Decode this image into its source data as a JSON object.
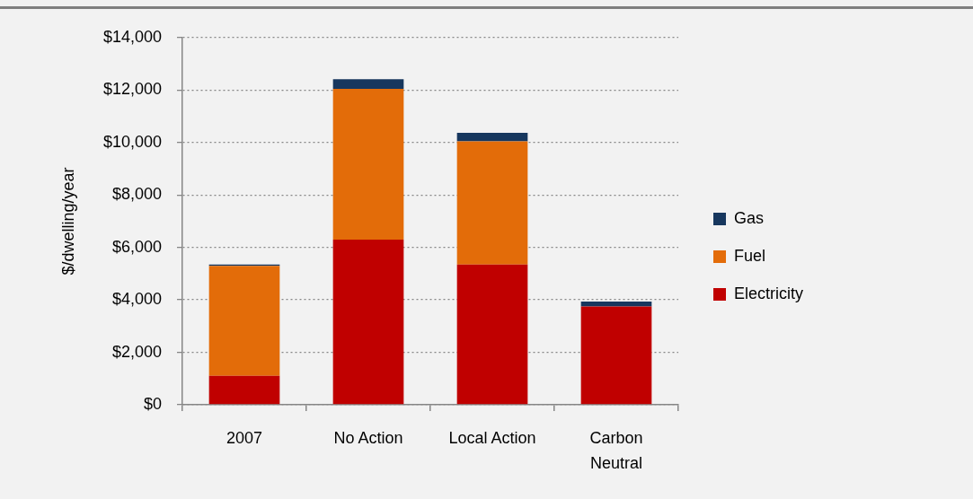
{
  "chart_data": {
    "type": "bar",
    "stacked": true,
    "ylabel": "$/dwelling/year",
    "categories": [
      "2007",
      "No Action",
      "Local Action",
      "Carbon Neutral"
    ],
    "series": [
      {
        "name": "Electricity",
        "color": "#c00000",
        "values": [
          1100,
          6300,
          5350,
          3750
        ]
      },
      {
        "name": "Fuel",
        "color": "#e36c09",
        "values": [
          4200,
          5750,
          4700,
          0
        ]
      },
      {
        "name": "Gas",
        "color": "#17375e",
        "values": [
          50,
          370,
          320,
          190
        ]
      }
    ],
    "ylim": [
      0,
      14000
    ],
    "yticks": [
      {
        "value": 0,
        "label": "$0"
      },
      {
        "value": 2000,
        "label": "$2,000"
      },
      {
        "value": 4000,
        "label": "$4,000"
      },
      {
        "value": 6000,
        "label": "$6,000"
      },
      {
        "value": 8000,
        "label": "$8,000"
      },
      {
        "value": 10000,
        "label": "$10,000"
      },
      {
        "value": 12000,
        "label": "$12,000"
      },
      {
        "value": 14000,
        "label": "$14,000"
      }
    ],
    "grid": "y",
    "legend": "right"
  }
}
